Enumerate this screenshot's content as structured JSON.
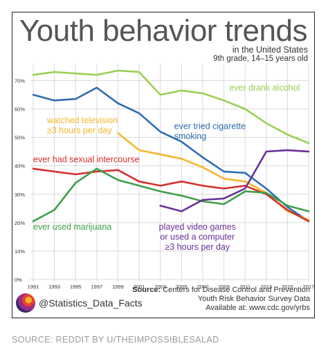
{
  "chart_data": {
    "type": "line",
    "title": "Youth behavior trends",
    "subtitle": "in the United States",
    "subtitle2": "9th grade, 14–15 years old",
    "xlabel": "",
    "ylabel": "",
    "x": [
      1991,
      1993,
      1995,
      1997,
      1999,
      2001,
      2003,
      2005,
      2007,
      2009,
      2011,
      2013,
      2015,
      2017
    ],
    "xticks": [
      "1991",
      "1993",
      "1995",
      "1997",
      "1999",
      "2001",
      "2003",
      "2005",
      "2007",
      "2009",
      "2011",
      "2013",
      "2015",
      "2017"
    ],
    "yticks": [
      {
        "value": 0,
        "label": "0%"
      },
      {
        "value": 10,
        "label": "10%"
      },
      {
        "value": 20,
        "label": "20%"
      },
      {
        "value": 30,
        "label": "30%"
      },
      {
        "value": 40,
        "label": "40%"
      },
      {
        "value": 50,
        "label": "50%"
      },
      {
        "value": 60,
        "label": "60%"
      },
      {
        "value": 70,
        "label": "70%"
      }
    ],
    "ylim": [
      0,
      74
    ],
    "grid": true,
    "series": [
      {
        "name": "ever drank alcohol",
        "color": "#9bcf53",
        "label_lines": [
          "ever drank alcohol"
        ],
        "values": [
          72.0,
          73.0,
          72.5,
          72.0,
          73.5,
          73.0,
          65.0,
          66.5,
          65.5,
          63.0,
          60.0,
          55.0,
          51.0,
          48.0
        ]
      },
      {
        "name": "ever tried cigarette smoking",
        "color": "#2d6db1",
        "label_lines": [
          "ever tried cigarette",
          "smoking"
        ],
        "values": [
          65.0,
          63.0,
          63.5,
          67.5,
          62.0,
          58.5,
          52.0,
          48.5,
          43.0,
          38.0,
          37.5,
          32.0,
          25.5,
          20.5
        ]
      },
      {
        "name": "watched television ≥3 hours per day",
        "color": "#f3b72e",
        "label_lines": [
          "watched television",
          "≥3 hours per day"
        ],
        "values": [
          null,
          null,
          null,
          null,
          51.5,
          45.5,
          44.0,
          42.5,
          39.5,
          35.5,
          34.5,
          30.5,
          24.0,
          21.0
        ]
      },
      {
        "name": "ever had sexual intercourse",
        "color": "#d2312d",
        "label_lines": [
          "ever had sexual intercourse"
        ],
        "values": [
          39.0,
          38.0,
          37.0,
          38.0,
          38.5,
          34.5,
          33.0,
          34.5,
          33.0,
          32.0,
          33.0,
          30.0,
          24.5,
          20.5
        ]
      },
      {
        "name": "ever used marijuana",
        "color": "#3f9f4a",
        "label_lines": [
          "ever used marijuana"
        ],
        "values": [
          20.5,
          24.5,
          34.0,
          39.0,
          35.0,
          33.0,
          31.0,
          29.5,
          27.5,
          26.5,
          31.0,
          30.5,
          26.0,
          24.0
        ]
      },
      {
        "name": "played video games or used a computer ≥3 hours per day",
        "color": "#6a2f9a",
        "label_lines": [
          "played video games",
          "or used a computer",
          "≥3 hours per day"
        ],
        "values": [
          null,
          null,
          null,
          null,
          null,
          null,
          26.0,
          24.0,
          28.0,
          28.5,
          32.0,
          45.0,
          45.5,
          45.0
        ]
      }
    ],
    "source_label": "Source:",
    "source_lines": [
      "Centers for Disease Control and Prevention",
      "Youth Risk Behavior Survey Data",
      "Available at: www.cdc.gov/yrbs"
    ]
  },
  "brand": {
    "handle": "@Statistics_Data_Facts"
  },
  "footer": "SOURCE: REDDIT BY U/THEIMPOSSIBLESALAD"
}
